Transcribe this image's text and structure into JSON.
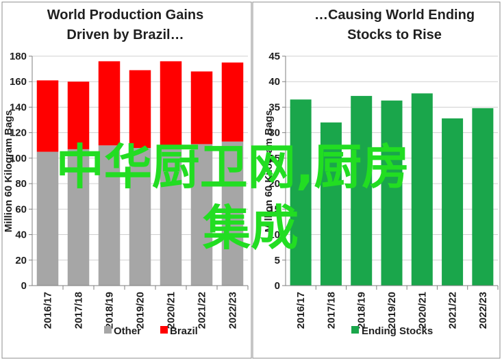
{
  "chart_data": [
    {
      "type": "bar",
      "stacked": true,
      "title_lines": [
        "World Production Gains",
        "Driven by Brazil…"
      ],
      "ylabel": "Million 60 Kilogram Bags",
      "ylim": [
        0,
        180
      ],
      "ytick_step": 20,
      "yticks": [
        "0",
        "20",
        "40",
        "60",
        "80",
        "100",
        "120",
        "140",
        "160",
        "180"
      ],
      "categories": [
        "2016/17",
        "2017/18",
        "2018/19",
        "2019/20",
        "2020/21",
        "2021/22",
        "2022/23"
      ],
      "series": [
        {
          "name": "Other",
          "color": "#a6a6a6",
          "values": [
            105,
            107,
            110,
            108,
            110,
            111,
            113
          ]
        },
        {
          "name": "Brazil",
          "color": "#ff0000",
          "values": [
            56,
            53,
            66,
            61,
            66,
            57,
            62
          ]
        }
      ],
      "grid": true,
      "legend": "bottom"
    },
    {
      "type": "bar",
      "title_lines": [
        "…Causing World Ending",
        "Stocks to Rise"
      ],
      "ylabel": "Million 60 Kilogram Bags",
      "ylim": [
        0,
        45
      ],
      "ytick_step": 5,
      "yticks": [
        "0",
        "5",
        "10",
        "15",
        "20",
        "25",
        "30",
        "35",
        "40",
        "45"
      ],
      "categories": [
        "2016/17",
        "2017/18",
        "2018/19",
        "2019/20",
        "2020/21",
        "2021/22",
        "2022/23"
      ],
      "series": [
        {
          "name": "Ending Stocks",
          "color": "#1aa64b",
          "values": [
            36.5,
            32.0,
            37.2,
            36.3,
            37.7,
            32.8,
            34.8
          ]
        }
      ],
      "grid": true,
      "legend": "bottom"
    }
  ],
  "watermark": {
    "line1": "中华厨卫网,厨房",
    "line2": "集成",
    "color": "#22dd22"
  }
}
